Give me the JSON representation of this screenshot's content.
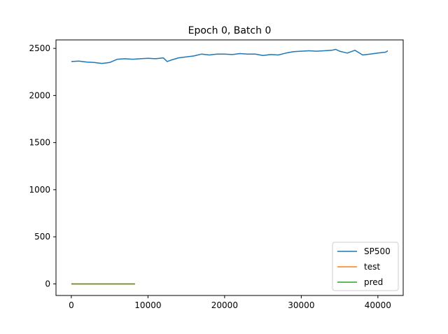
{
  "chart_data": {
    "type": "line",
    "title": "Epoch 0, Batch 0",
    "xlabel": "",
    "ylabel": "",
    "xlim": [
      -2000,
      43300
    ],
    "ylim": [
      -123,
      2590
    ],
    "x_ticks": [
      0,
      10000,
      20000,
      30000,
      40000
    ],
    "x_tick_labels": [
      "0",
      "10000",
      "20000",
      "30000",
      "40000"
    ],
    "y_ticks": [
      0,
      500,
      1000,
      1500,
      2000,
      2500
    ],
    "y_tick_labels": [
      "0",
      "500",
      "1000",
      "1500",
      "2000",
      "2500"
    ],
    "grid": false,
    "legend_position": "lower-right",
    "series": [
      {
        "name": "SP500",
        "color": "#1f77b4",
        "x": [
          0,
          1000,
          2000,
          3000,
          4000,
          5000,
          6000,
          7000,
          8000,
          9000,
          10000,
          11000,
          12000,
          12500,
          13000,
          14000,
          15000,
          16000,
          17000,
          18000,
          19000,
          20000,
          21000,
          22000,
          23000,
          24000,
          25000,
          26000,
          27000,
          28000,
          29000,
          30000,
          31000,
          32000,
          33000,
          34000,
          34500,
          35000,
          36000,
          37000,
          38000,
          39000,
          40000,
          41000,
          41300
        ],
        "y": [
          2360,
          2365,
          2355,
          2350,
          2340,
          2350,
          2385,
          2390,
          2385,
          2390,
          2395,
          2390,
          2400,
          2360,
          2375,
          2400,
          2410,
          2420,
          2440,
          2430,
          2440,
          2440,
          2435,
          2445,
          2440,
          2440,
          2425,
          2435,
          2430,
          2450,
          2465,
          2470,
          2475,
          2470,
          2475,
          2480,
          2490,
          2470,
          2450,
          2480,
          2430,
          2440,
          2450,
          2460,
          2475
        ]
      },
      {
        "name": "test",
        "color": "#ff7f0e",
        "x": [
          0,
          8300
        ],
        "y": [
          0,
          0
        ]
      },
      {
        "name": "pred",
        "color": "#2ca02c",
        "x": [
          0,
          8300
        ],
        "y": [
          0,
          0
        ]
      }
    ]
  }
}
